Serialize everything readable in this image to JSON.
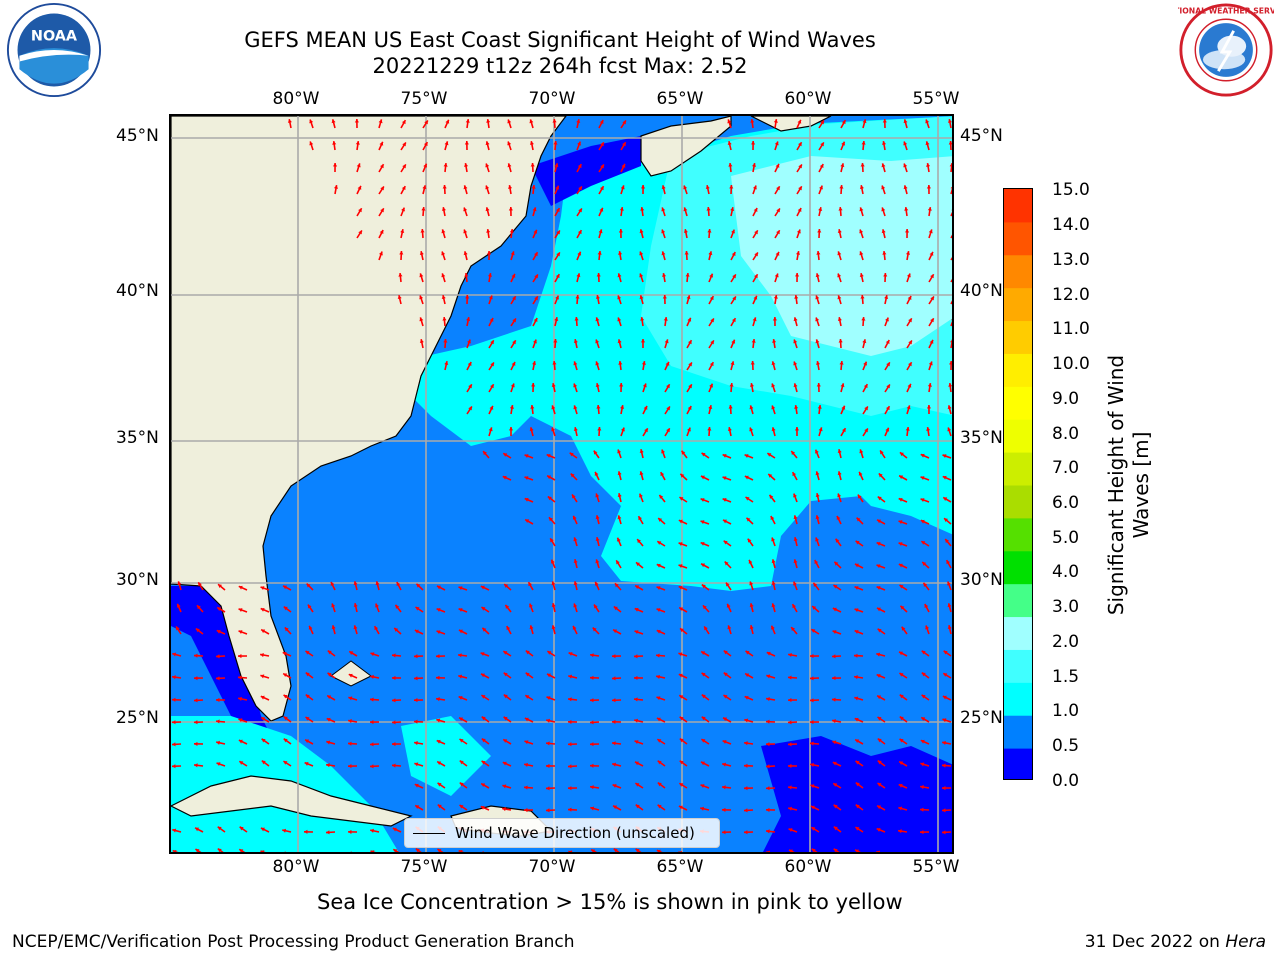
{
  "title": {
    "line1": "GEFS MEAN US East Coast Significant Height of Wind Waves",
    "line2": "20221229 t12z 264h fcst   Max: 2.52"
  },
  "axes": {
    "lon_labels": [
      "80°W",
      "75°W",
      "70°W",
      "65°W",
      "60°W",
      "55°W"
    ],
    "lat_labels": [
      "45°N",
      "40°N",
      "35°N",
      "30°N",
      "25°N"
    ],
    "lon_range": [
      -85,
      -54.2
    ],
    "lat_range": [
      20.5,
      45.8
    ]
  },
  "colorbar": {
    "label": "Significant Height of Wind Waves [m]",
    "tick_labels": [
      "15.0",
      "14.0",
      "13.0",
      "12.0",
      "11.0",
      "10.0",
      "9.0",
      "8.0",
      "7.0",
      "6.0",
      "5.0",
      "4.0",
      "3.0",
      "2.0",
      "1.5",
      "1.0",
      "0.5",
      "0.0"
    ],
    "colors": [
      "#0000ff",
      "#0080ff",
      "#00ffff",
      "#40ffff",
      "#a0ffff",
      "#44ff88",
      "#00e000",
      "#55e000",
      "#aadd00",
      "#ccee00",
      "#eeff00",
      "#ffff00",
      "#ffee00",
      "#ffcc00",
      "#ffaa00",
      "#ff8800",
      "#ff5500",
      "#ff3300",
      "#ff0000"
    ]
  },
  "map": {
    "land_color": "#efefdc",
    "ocean_color": "#0a82ff",
    "arrow_color": "#ff0000"
  },
  "legend": {
    "label": "Wind Wave Direction (unscaled)"
  },
  "footer": {
    "note": "Sea Ice Concentration > 15% is shown in pink to yellow",
    "credit_left": "NCEP/EMC/Verification Post Processing Product Generation Branch",
    "credit_date": "31 Dec 2022 on ",
    "credit_machine": "Hera"
  },
  "logos": {
    "noaa_text": "NOAA",
    "nws_text": "NATIONAL WEATHER SERVICE"
  }
}
